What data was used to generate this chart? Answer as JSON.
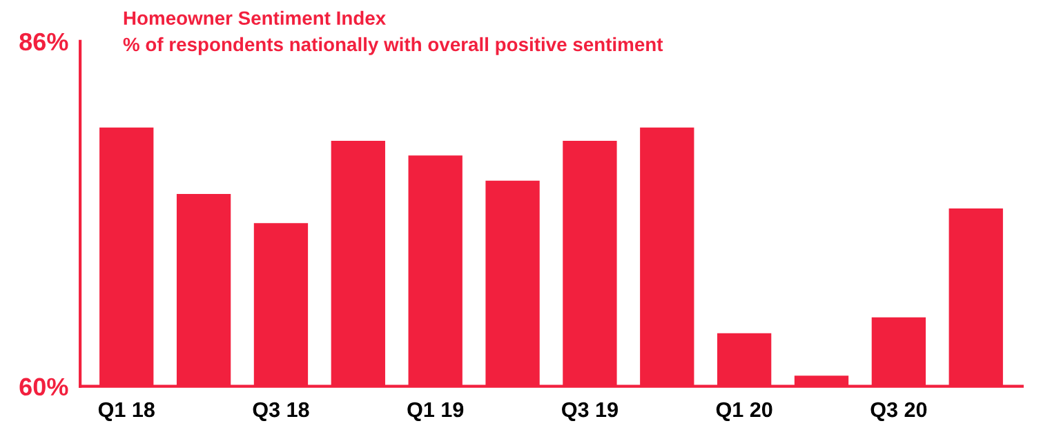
{
  "chart_data": {
    "type": "bar",
    "title": "Homeowner Sentiment Index",
    "subtitle": "% of respondents nationally with overall positive sentiment",
    "categories": [
      "Q1 18",
      null,
      "Q3 18",
      null,
      "Q1 19",
      null,
      "Q3 19",
      null,
      "Q1 20",
      null,
      "Q3 20",
      null
    ],
    "values": [
      79.5,
      74.5,
      72.3,
      78.5,
      77.4,
      75.5,
      78.5,
      79.5,
      64.0,
      60.8,
      65.2,
      73.4
    ],
    "color": "#f2203e",
    "ylim": [
      60,
      86
    ],
    "yticks": [
      {
        "value": 60,
        "label": "60%"
      },
      {
        "value": 86,
        "label": "86%"
      }
    ],
    "grid": false,
    "legend": false
  }
}
